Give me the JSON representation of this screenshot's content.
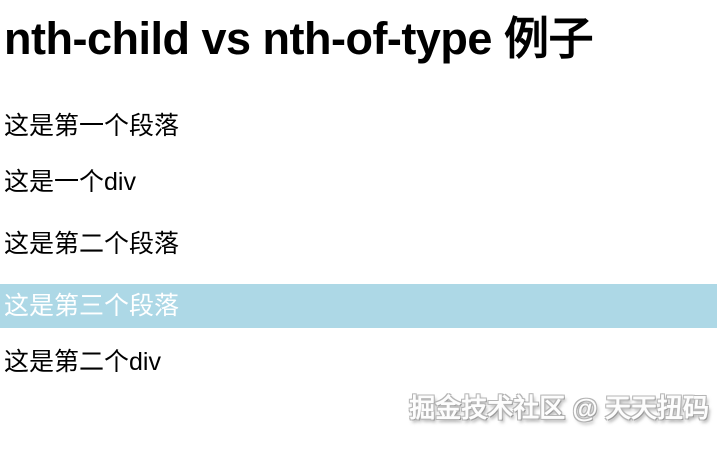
{
  "page": {
    "heading": "nth-child vs nth-of-type 例子",
    "content": [
      {
        "tag": "p",
        "text": "这是第一个段落",
        "highlighted": false
      },
      {
        "tag": "div",
        "text": "这是一个div",
        "highlighted": false
      },
      {
        "tag": "p",
        "text": "这是第二个段落",
        "highlighted": false
      },
      {
        "tag": "p",
        "text": "这是第三个段落",
        "highlighted": true
      },
      {
        "tag": "div",
        "text": "这是第二个div",
        "highlighted": false
      }
    ],
    "watermark": {
      "text": "掘金技术社区 @ 天天扭码"
    },
    "colors": {
      "highlight_background": "#add8e6",
      "highlight_text": "#ffffff",
      "body_text": "#000000",
      "page_background": "#ffffff"
    }
  }
}
